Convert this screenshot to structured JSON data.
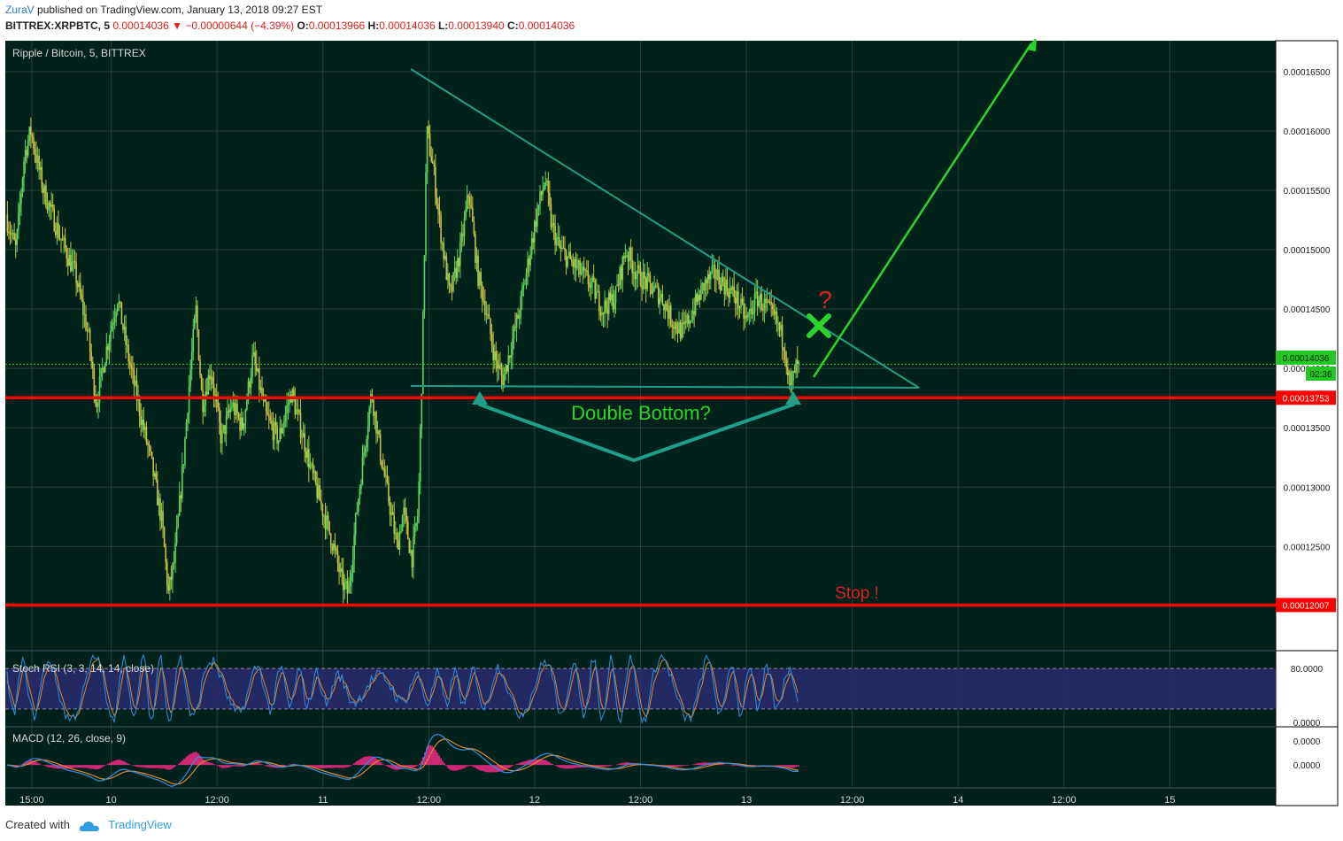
{
  "header": {
    "user": "ZuraV",
    "published": "published on TradingView.com, January 13, 2018 09:27 EST",
    "symbol": "BITTREX:XRPBTC, 5",
    "last": "0.00014036",
    "change_arrow": "▼",
    "change": "−0.00000644 (−4.39%)",
    "open_label": "O:",
    "open": "0.00013966",
    "high_label": "H:",
    "high": "0.00014036",
    "low_label": "L:",
    "low": "0.00013940",
    "close_label": "C:",
    "close": "0.00014036"
  },
  "footer": {
    "created_with": "Created with",
    "brand": "TradingView"
  },
  "chart_data": [
    {
      "type": "candlestick",
      "title": "Ripple / Bitcoin, 5, BITTREX",
      "y_ticks": [
        "0.00016500",
        "0.00016000",
        "0.00015500",
        "0.00015000",
        "0.00014500",
        "0.00014000",
        "0.00013500",
        "0.00013000",
        "0.00012500"
      ],
      "y_tick_values": [
        0.000165,
        0.00016,
        0.000155,
        0.00015,
        0.000145,
        0.00014,
        0.000135,
        0.00013,
        0.000125
      ],
      "ylim": [
        0.0001163,
        0.0001676
      ],
      "x_ticks": [
        "15:00",
        "10",
        "12:00",
        "11",
        "12:00",
        "12",
        "12:00",
        "13",
        "12:00",
        "14",
        "12:00",
        "15"
      ],
      "x_tick_values": [
        0.125,
        0.5,
        1.0,
        1.5,
        2.0,
        2.5,
        3.0,
        3.5,
        4.0,
        4.5,
        5.0,
        5.5
      ],
      "xlim": [
        0.0,
        6.0
      ],
      "x_unit": "days from Jan 9 12:00",
      "last_price_label": "0.00014036",
      "countdown_label": "02:36",
      "price_path": [
        [
          0.0,
          0.000153
        ],
        [
          0.05,
          0.00015
        ],
        [
          0.09,
          0.000158
        ],
        [
          0.12,
          0.00016
        ],
        [
          0.18,
          0.000155
        ],
        [
          0.26,
          0.000151
        ],
        [
          0.33,
          0.000148
        ],
        [
          0.39,
          0.000143
        ],
        [
          0.43,
          0.000137
        ],
        [
          0.47,
          0.000141
        ],
        [
          0.53,
          0.000146
        ],
        [
          0.58,
          0.000141
        ],
        [
          0.64,
          0.000136
        ],
        [
          0.69,
          0.000132
        ],
        [
          0.74,
          0.000127
        ],
        [
          0.77,
          0.000121
        ],
        [
          0.8,
          0.000124
        ],
        [
          0.84,
          0.000132
        ],
        [
          0.87,
          0.000139
        ],
        [
          0.9,
          0.000145
        ],
        [
          0.93,
          0.000137
        ],
        [
          0.97,
          0.00014
        ],
        [
          1.02,
          0.000134
        ],
        [
          1.07,
          0.000137
        ],
        [
          1.12,
          0.000135
        ],
        [
          1.17,
          0.000141
        ],
        [
          1.23,
          0.000136
        ],
        [
          1.29,
          0.000134
        ],
        [
          1.35,
          0.000138
        ],
        [
          1.41,
          0.000134
        ],
        [
          1.45,
          0.000131
        ],
        [
          1.5,
          0.000128
        ],
        [
          1.55,
          0.000125
        ],
        [
          1.59,
          0.000122
        ],
        [
          1.62,
          0.000121
        ],
        [
          1.66,
          0.000128
        ],
        [
          1.7,
          0.000134
        ],
        [
          1.73,
          0.000138
        ],
        [
          1.77,
          0.000133
        ],
        [
          1.81,
          0.000129
        ],
        [
          1.85,
          0.000125
        ],
        [
          1.88,
          0.000128
        ],
        [
          1.92,
          0.000124
        ],
        [
          1.95,
          0.000128
        ],
        [
          1.97,
          0.000141
        ],
        [
          1.99,
          0.00016
        ],
        [
          2.02,
          0.000157
        ],
        [
          2.06,
          0.000151
        ],
        [
          2.1,
          0.000146
        ],
        [
          2.15,
          0.00015
        ],
        [
          2.19,
          0.000155
        ],
        [
          2.23,
          0.000148
        ],
        [
          2.27,
          0.000145
        ],
        [
          2.31,
          0.000141
        ],
        [
          2.35,
          0.000139
        ],
        [
          2.39,
          0.000142
        ],
        [
          2.43,
          0.000145
        ],
        [
          2.47,
          0.000149
        ],
        [
          2.51,
          0.000153
        ],
        [
          2.55,
          0.000156
        ],
        [
          2.58,
          0.000152
        ],
        [
          2.62,
          0.00015
        ],
        [
          2.67,
          0.000149
        ],
        [
          2.72,
          0.000148
        ],
        [
          2.77,
          0.000147
        ],
        [
          2.82,
          0.000145
        ],
        [
          2.88,
          0.000146
        ],
        [
          2.93,
          0.00015
        ],
        [
          2.98,
          0.000148
        ],
        [
          3.04,
          0.000147
        ],
        [
          3.1,
          0.000146
        ],
        [
          3.15,
          0.000144
        ],
        [
          3.2,
          0.000143
        ],
        [
          3.25,
          0.000145
        ],
        [
          3.3,
          0.000147
        ],
        [
          3.35,
          0.000148
        ],
        [
          3.4,
          0.000147
        ],
        [
          3.45,
          0.000146
        ],
        [
          3.5,
          0.000144
        ],
        [
          3.55,
          0.000146
        ],
        [
          3.6,
          0.000145
        ],
        [
          3.64,
          0.000144
        ],
        [
          3.68,
          0.000142
        ],
        [
          3.71,
          0.000138
        ],
        [
          3.73,
          0.00014
        ],
        [
          3.75,
          0.00014
        ]
      ],
      "levels": [
        {
          "value": 0.00013753,
          "label": "0.00013753",
          "color": "#ff0000"
        },
        {
          "value": 0.00012007,
          "label": "0.00012007",
          "color": "#ff0000"
        }
      ],
      "annotations": {
        "double_bottom": "Double Bottom?",
        "stop": "Stop !",
        "question": "?"
      },
      "colors": {
        "up": "#5fd35f",
        "down": "#c8c040",
        "background": "#00221a",
        "trendline": "#1f9e8a",
        "target_arrow": "#2dd22d",
        "label_red": "#e02020"
      }
    },
    {
      "type": "line",
      "title": "Stoch RSI (3, 3, 14, 14, close)",
      "y_ticks": [
        "80.0000",
        "0.0000"
      ],
      "y_tick_values": [
        80,
        0
      ],
      "ylim": [
        -5,
        105
      ],
      "band": [
        20,
        80
      ],
      "colors": {
        "k": "#2f8fe0",
        "d": "#e08a30",
        "band": "#2a2a70"
      }
    },
    {
      "type": "line",
      "title": "MACD (12, 26, close, 9)",
      "y_ticks": [
        "0.0000",
        "0.0000"
      ],
      "colors": {
        "macd": "#2f8fe0",
        "signal": "#e08a30",
        "hist": "#ff2a8a"
      }
    }
  ]
}
